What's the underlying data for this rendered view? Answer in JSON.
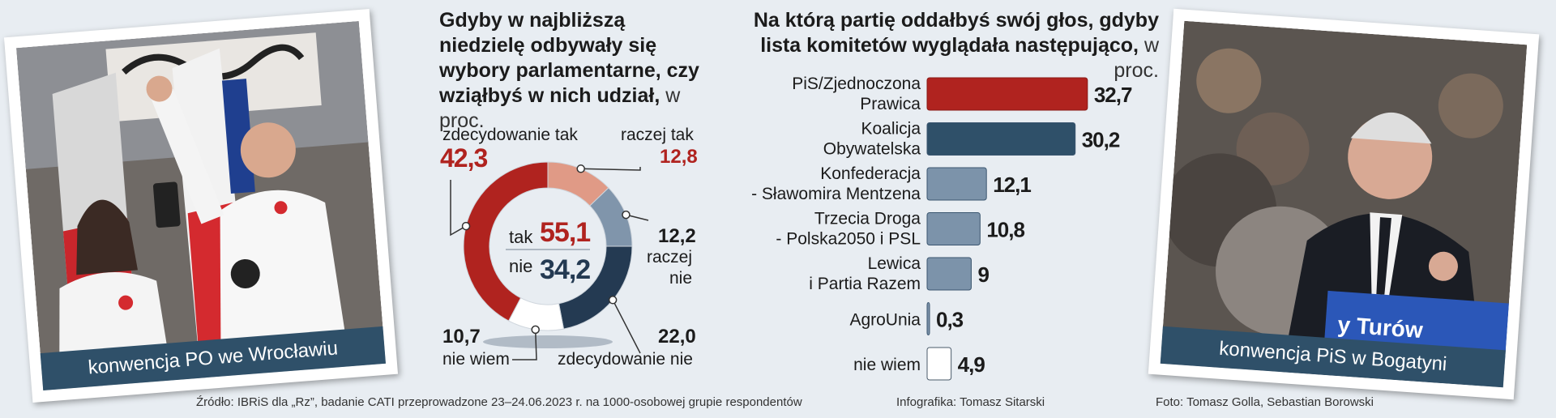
{
  "donut": {
    "title": "Gdyby w najbliższą niedzielę odbywały się wybory parlamentarne, czy wziąłbyś w nich udział,",
    "unit": "w proc.",
    "center_yes_label": "tak",
    "center_yes_value": "55,1",
    "center_no_label": "nie",
    "center_no_value": "34,2",
    "labels": {
      "def_yes": "zdecydowanie tak",
      "def_yes_value": "42,3",
      "rather_yes": "raczej tak",
      "rather_yes_value": "12,8",
      "rather_no_value": "12,2",
      "rather_no_1": "raczej",
      "rather_no_2": "nie",
      "def_no_value": "22,0",
      "def_no": "zdecydowanie nie",
      "dont_know_value": "10,7",
      "dont_know": "nie wiem"
    }
  },
  "bars": {
    "title": "Na którą partię oddałbyś swój głos, gdyby lista komitetów wyglądała następująco,",
    "unit": "w proc."
  },
  "chart_data": [
    {
      "type": "pie",
      "title": "Gdyby w najbliższą niedzielę odbywały się wybory parlamentarne, czy wziąłbyś w nich udział, w proc.",
      "categories": [
        "zdecydowanie tak",
        "raczej tak",
        "raczej nie",
        "zdecydowanie nie",
        "nie wiem"
      ],
      "values": [
        42.3,
        12.8,
        12.2,
        22.0,
        10.7
      ],
      "colors": [
        "#b0231f",
        "#e09a86",
        "#8095ab",
        "#243a52",
        "#ffffff"
      ],
      "summary": [
        {
          "name": "tak",
          "value": 55.1
        },
        {
          "name": "nie",
          "value": 34.2
        }
      ]
    },
    {
      "type": "bar",
      "title": "Na którą partię oddałbyś swój głos, gdyby lista komitetów wyglądała następująco, w proc.",
      "categories": [
        [
          "PiS/Zjednoczona",
          "Prawica"
        ],
        [
          "Koalicja",
          "Obywatelska"
        ],
        [
          "Konfederacja",
          "- Sławomira Mentzena"
        ],
        [
          "Trzecia Droga",
          "- Polska2050 i PSL"
        ],
        [
          "Lewica",
          "i Partia Razem"
        ],
        [
          "AgroUnia"
        ],
        [
          "nie wiem"
        ]
      ],
      "values": [
        32.7,
        30.2,
        12.1,
        10.8,
        9,
        0.3,
        4.9
      ],
      "value_labels": [
        "32,7",
        "30,2",
        "12,1",
        "10,8",
        "9",
        "0,3",
        "4,9"
      ],
      "colors": [
        "#b0231f",
        "#2f5069",
        "#7c93aa",
        "#7c93aa",
        "#7c93aa",
        "#7c93aa",
        "#ffffff"
      ]
    }
  ],
  "photos": {
    "left_caption": "konwencja PO we Wrocławiu",
    "right_caption": "konwencja PiS w Bogatyni",
    "right_sign": "y Turów"
  },
  "footer": {
    "source": "Źródło: IBRiS dla „Rz”, badanie CATI przeprowadzone 23–24.06.2023 r. na 1000-osobowej grupie respondentów",
    "infographic": "Infografika: Tomasz Sitarski",
    "photo_credit": "Foto: Tomasz Golla, Sebastian Borowski"
  }
}
